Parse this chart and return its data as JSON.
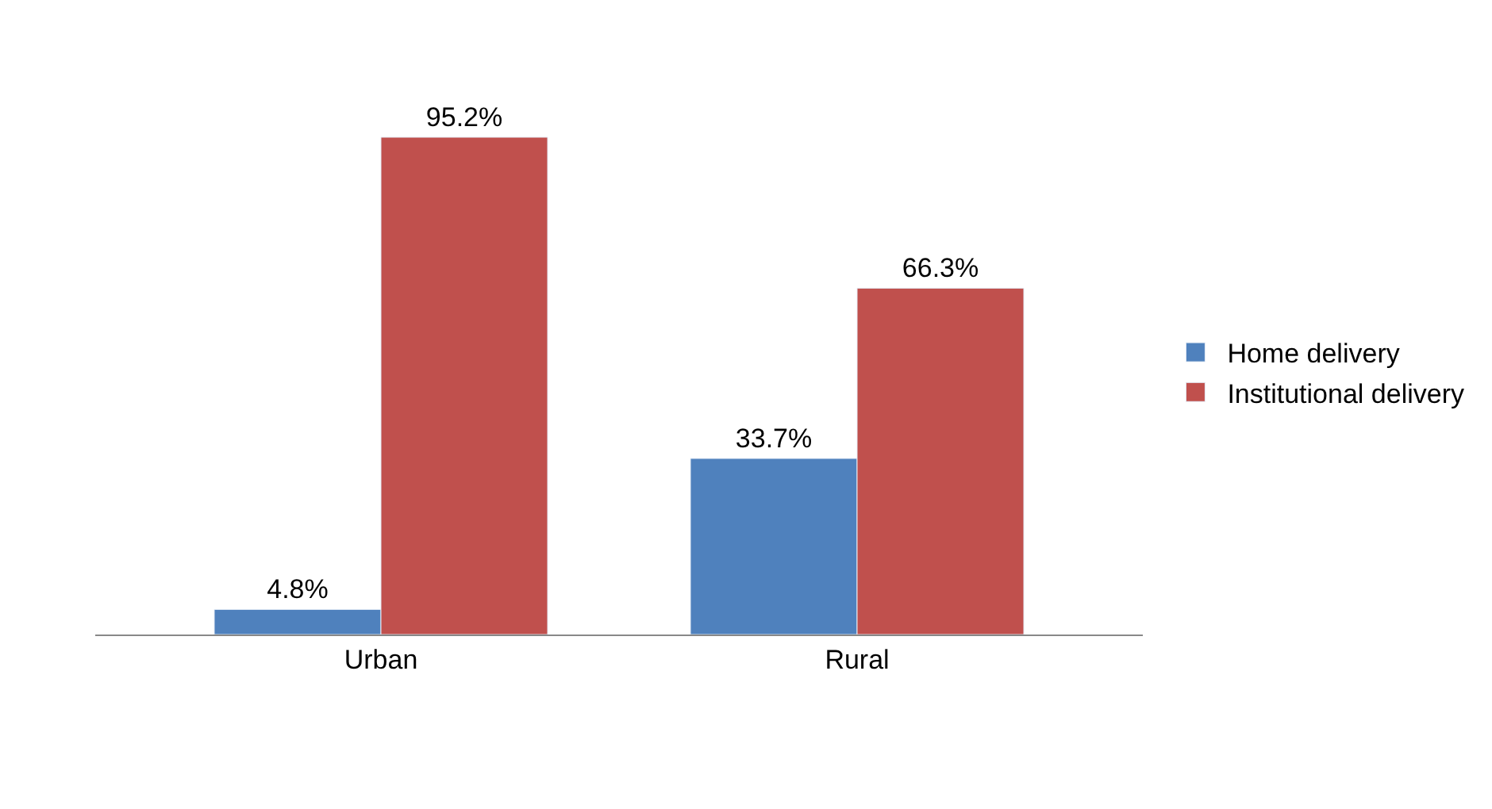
{
  "chart_data": {
    "type": "bar",
    "categories": [
      "Urban",
      "Rural"
    ],
    "series": [
      {
        "name": "Home delivery",
        "color": "#4f81bd",
        "values": [
          4.8,
          33.7
        ],
        "value_labels": [
          "4.8%",
          "33.7%"
        ]
      },
      {
        "name": "Institutional delivery",
        "color": "#c0504d",
        "values": [
          95.2,
          66.3
        ],
        "value_labels": [
          "95.2%",
          "66.3%"
        ]
      }
    ],
    "legend": "right"
  }
}
